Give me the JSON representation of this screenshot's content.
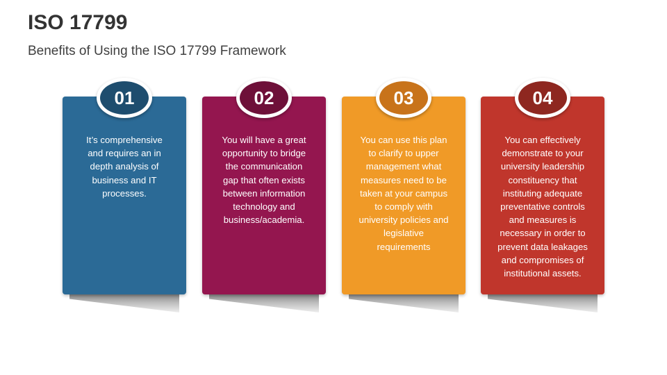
{
  "title": "ISO 17799",
  "subtitle": "Benefits of Using the ISO 17799 Framework",
  "cards": [
    {
      "number": "01",
      "text": "It’s comprehensive\nand requires an in\ndepth analysis of\nbusiness and IT\nprocesses.",
      "color": "#2b6a96",
      "badge_color": "#1e4d6e"
    },
    {
      "number": "02",
      "text": "You will have a great\nopportunity to bridge\nthe communication\ngap that often exists\nbetween information\ntechnology and\nbusiness/academia.",
      "color": "#94164f",
      "badge_color": "#6e1039"
    },
    {
      "number": "03",
      "text": "You can use this plan\nto clarify to upper\nmanagement what\nmeasures need to be\ntaken at your campus\nto comply with\nuniversity policies and\nlegislative\nrequirements",
      "color": "#f09a27",
      "badge_color": "#c8731a"
    },
    {
      "number": "04",
      "text": "You can effectively\ndemonstrate to your\nuniversity leadership\nconstituency that\ninstituting adequate\npreventative controls\nand measures is\nnecessary in order to\nprevent data leakages\nand compromises of\ninstitutional assets.",
      "color": "#c0362c",
      "badge_color": "#8e2720"
    }
  ]
}
